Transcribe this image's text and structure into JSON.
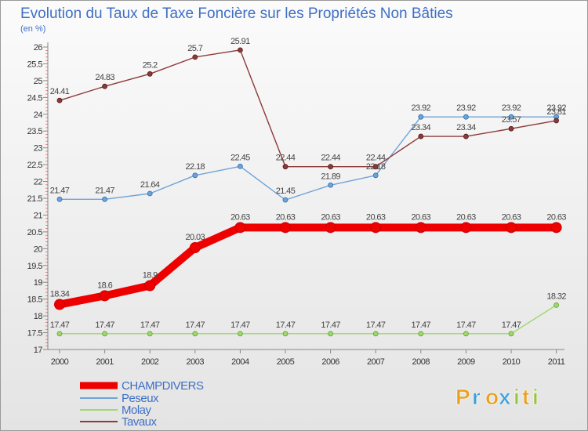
{
  "chart_data": {
    "type": "line",
    "title": "Evolution du Taux de Taxe Foncière sur les Propriétés Non Bâties",
    "subtitle": "(en %)",
    "xlabel": "",
    "ylabel": "",
    "categories": [
      "2000",
      "2001",
      "2002",
      "2003",
      "2004",
      "2005",
      "2006",
      "2007",
      "2008",
      "2009",
      "2010",
      "2011"
    ],
    "ylim": [
      17,
      26
    ],
    "yticks": [
      "17",
      "17.5",
      "18",
      "18.5",
      "19",
      "19.5",
      "20",
      "20.5",
      "21",
      "21.5",
      "22",
      "22.5",
      "23",
      "23.5",
      "24",
      "24.5",
      "25",
      "25.5",
      "26"
    ],
    "grid": false,
    "legend_position": "bottom-left",
    "series": [
      {
        "name": "CHAMPDIVERS",
        "color": "#ee0000",
        "bold": true,
        "values": [
          18.34,
          18.6,
          18.9,
          20.03,
          20.63,
          20.63,
          20.63,
          20.63,
          20.63,
          20.63,
          20.63,
          20.63
        ],
        "labels": [
          "18.34",
          "18.6",
          "18.9",
          "20.03",
          "20.63",
          "20.63",
          "20.63",
          "20.63",
          "20.63",
          "20.63",
          "20.63",
          "20.63"
        ]
      },
      {
        "name": "Peseux",
        "color": "#6fa3d8",
        "bold": false,
        "values": [
          21.47,
          21.47,
          21.64,
          22.18,
          22.45,
          21.45,
          21.89,
          22.18,
          23.92,
          23.92,
          23.92,
          23.92
        ],
        "labels": [
          "21.47",
          "21.47",
          "21.64",
          "22.18",
          "22.45",
          "21.45",
          "21.89",
          "22.18",
          "23.92",
          "23.92",
          "23.92",
          "23.92"
        ]
      },
      {
        "name": "Molay",
        "color": "#9fd86c",
        "bold": false,
        "values": [
          17.47,
          17.47,
          17.47,
          17.47,
          17.47,
          17.47,
          17.47,
          17.47,
          17.47,
          17.47,
          17.47,
          18.32
        ],
        "labels": [
          "17.47",
          "17.47",
          "17.47",
          "17.47",
          "17.47",
          "17.47",
          "17.47",
          "17.47",
          "17.47",
          "17.47",
          "17.47",
          "18.32"
        ]
      },
      {
        "name": "Tavaux",
        "color": "#8b3a3a",
        "bold": false,
        "values": [
          24.41,
          24.83,
          25.2,
          25.7,
          25.91,
          22.44,
          22.44,
          22.44,
          23.34,
          23.34,
          23.57,
          23.81
        ],
        "labels": [
          "24.41",
          "24.83",
          "25.2",
          "25.7",
          "25.91",
          "22.44",
          "22.44",
          "22.44",
          "23.34",
          "23.34",
          "23.57",
          "23.81"
        ]
      }
    ]
  },
  "logo": {
    "letters": [
      "P",
      "r",
      "o",
      "x",
      "i",
      "t",
      "i"
    ],
    "colors": [
      "#e8a020",
      "#3fa0d8",
      "#e8a020",
      "#3fa0d8",
      "#9ac43c",
      "#e8a020",
      "#9ac43c"
    ]
  }
}
